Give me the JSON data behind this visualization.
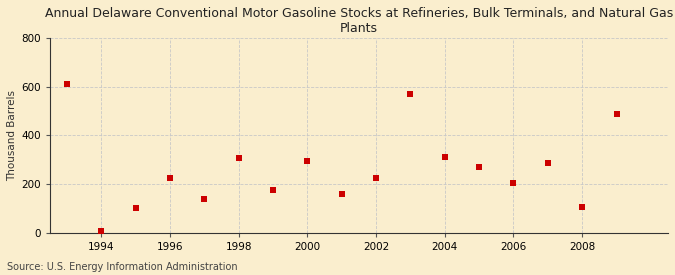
{
  "title": "Annual Delaware Conventional Motor Gasoline Stocks at Refineries, Bulk Terminals, and Natural Gas Plants",
  "ylabel": "Thousand Barrels",
  "source": "Source: U.S. Energy Information Administration",
  "years": [
    1993,
    1994,
    1995,
    1996,
    1997,
    1998,
    1999,
    2000,
    2001,
    2002,
    2003,
    2004,
    2005,
    2006,
    2007,
    2008,
    2009
  ],
  "values": [
    610,
    5,
    100,
    225,
    140,
    305,
    175,
    295,
    160,
    225,
    570,
    310,
    270,
    205,
    285,
    105,
    490
  ],
  "marker_color": "#cc0000",
  "marker": "s",
  "marker_size": 18,
  "background_color": "#faeece",
  "grid_color": "#c8c8c8",
  "ylim": [
    0,
    800
  ],
  "yticks": [
    0,
    200,
    400,
    600,
    800
  ],
  "xlim": [
    1992.5,
    2010.5
  ],
  "xticks": [
    1994,
    1996,
    1998,
    2000,
    2002,
    2004,
    2006,
    2008
  ],
  "title_fontsize": 9,
  "axis_label_fontsize": 7.5,
  "tick_fontsize": 7.5,
  "source_fontsize": 7
}
